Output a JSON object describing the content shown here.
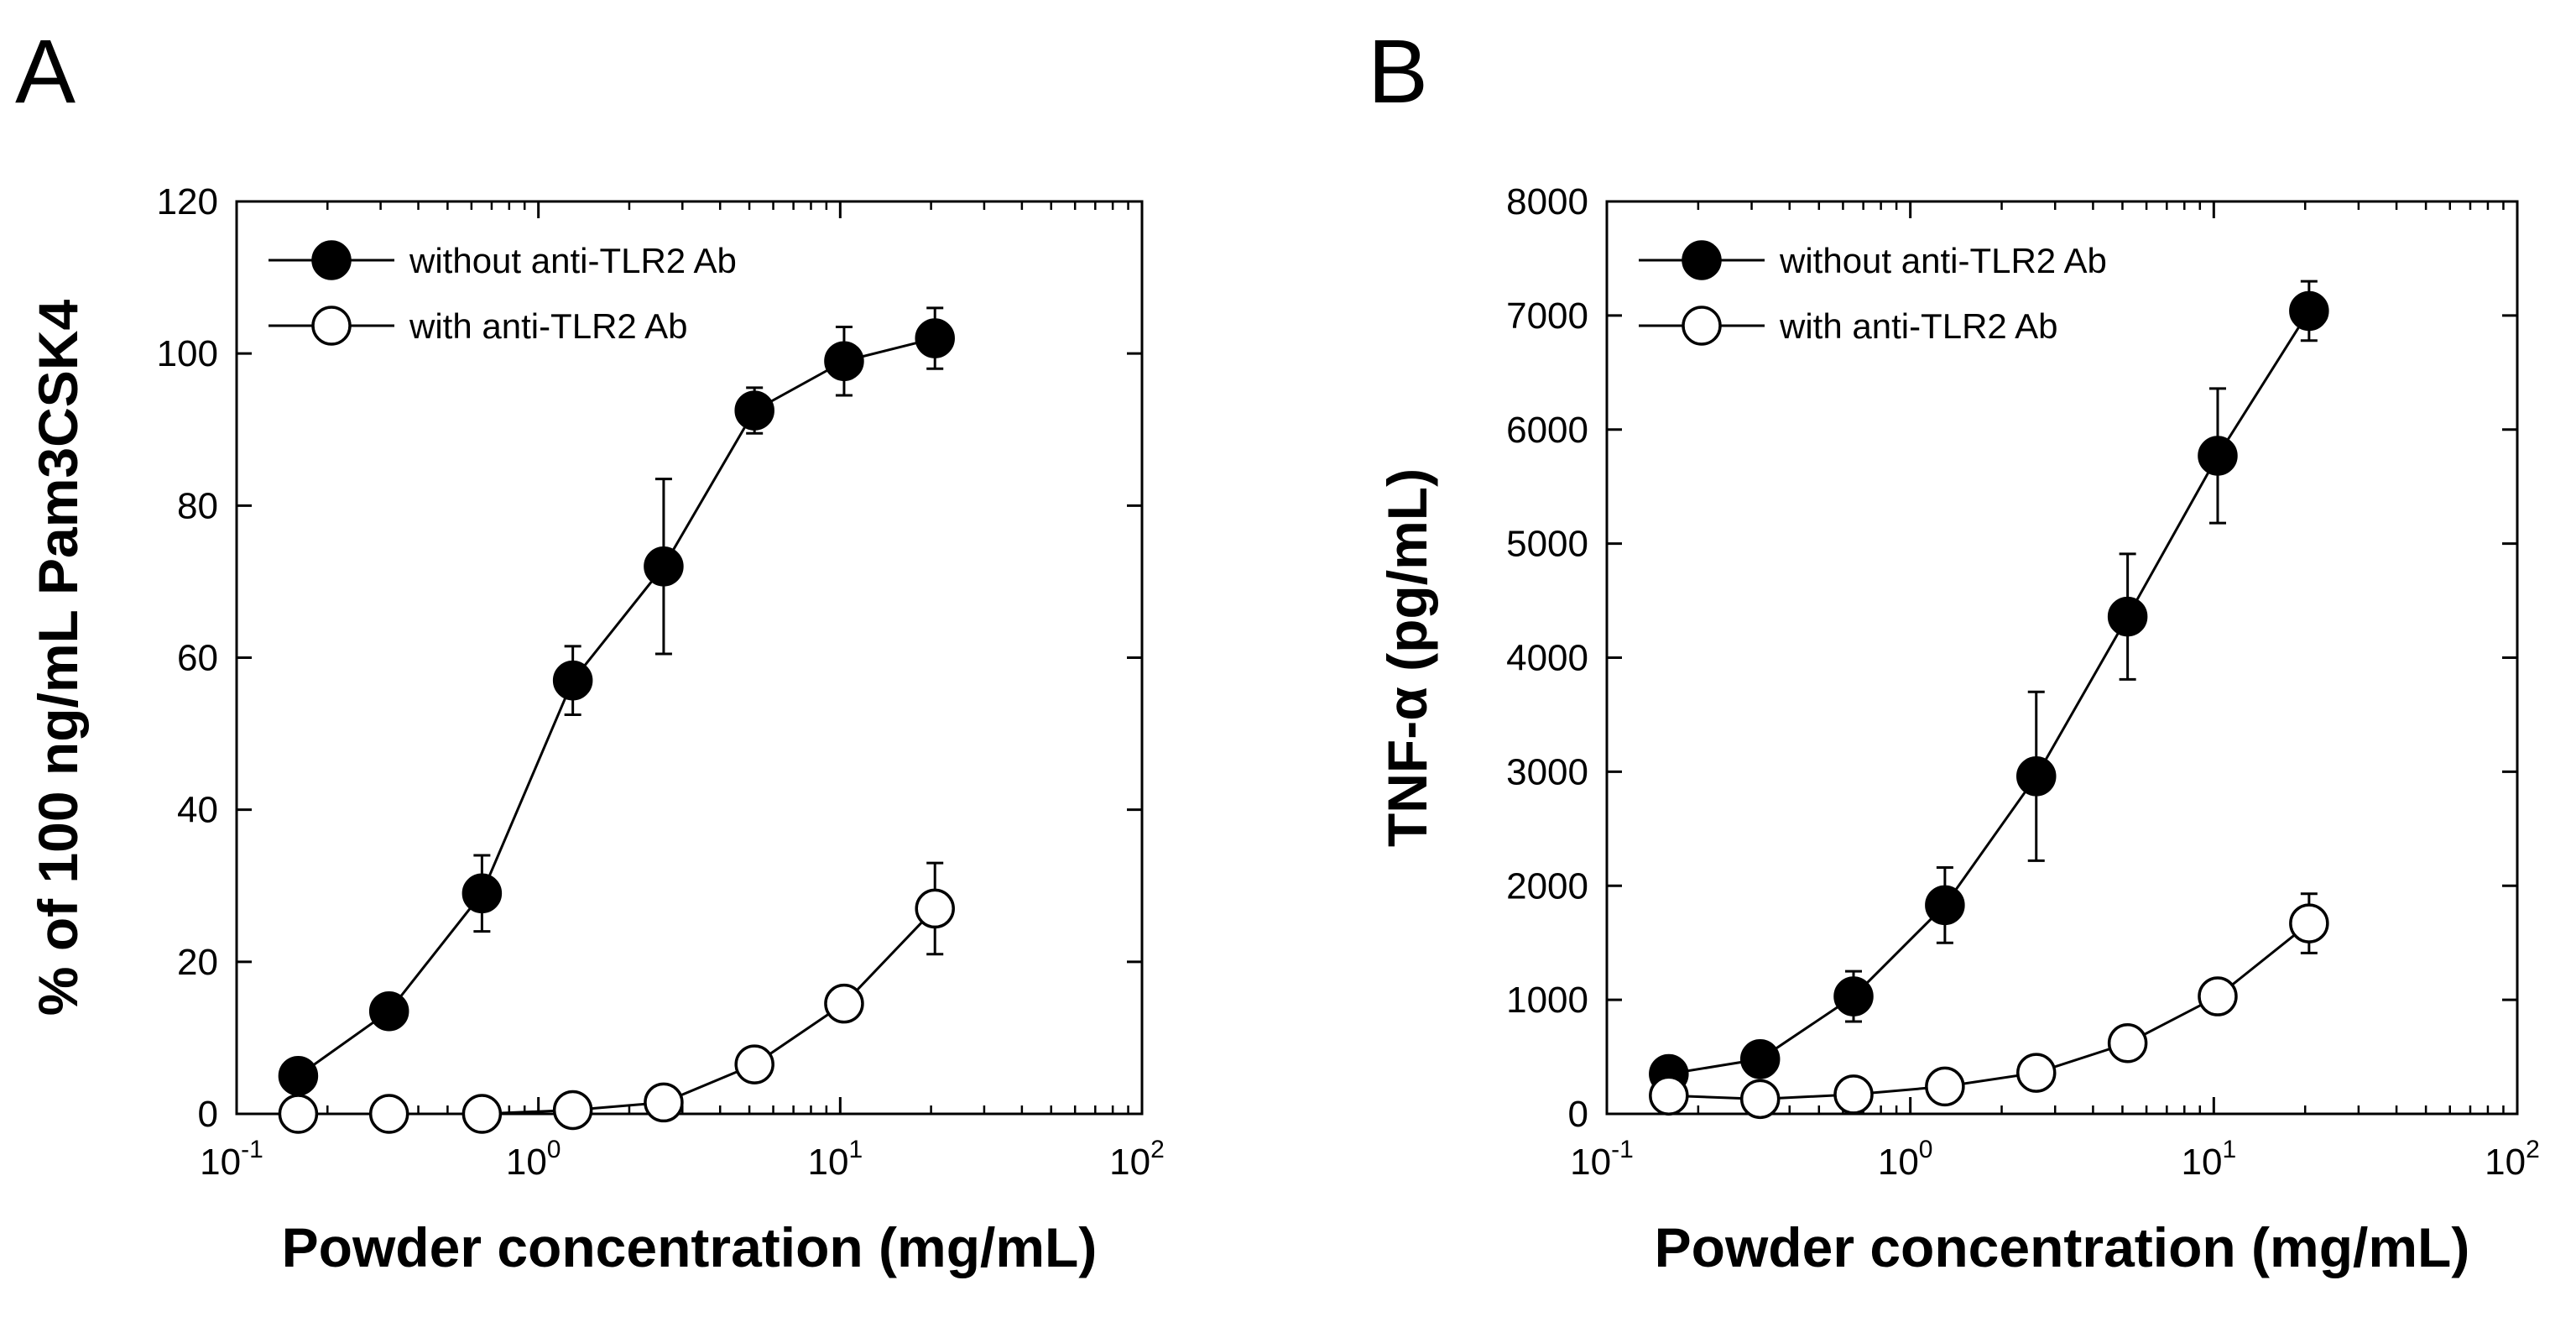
{
  "chart_data": [
    {
      "panel": "A",
      "type": "line",
      "xscale": "log",
      "xlim": [
        0.1,
        100
      ],
      "ylim": [
        0,
        120
      ],
      "yticks": [
        0,
        20,
        40,
        60,
        80,
        100,
        120
      ],
      "xticks": [
        {
          "value": 0.1,
          "base": "10",
          "exp": "-1"
        },
        {
          "value": 1,
          "base": "10",
          "exp": "0"
        },
        {
          "value": 10,
          "base": "10",
          "exp": "1"
        },
        {
          "value": 100,
          "base": "10",
          "exp": "2"
        }
      ],
      "xlabel": "Powder concentration (mg/mL)",
      "ylabel": "% of 100 ng/mL Pam3CSK4",
      "legend_position": "top-left",
      "x": [
        0.16,
        0.32,
        0.65,
        1.3,
        2.6,
        5.2,
        10.3,
        20.6
      ],
      "series": [
        {
          "name": "without anti-TLR2 Ab",
          "marker": "filled-circle",
          "values": [
            5,
            13.5,
            29,
            57,
            72,
            92.5,
            99,
            102
          ],
          "errors": [
            0,
            0,
            5,
            4.5,
            11.5,
            3,
            4.5,
            4
          ]
        },
        {
          "name": "with anti-TLR2 Ab",
          "marker": "open-circle",
          "values": [
            0,
            0,
            0,
            0.5,
            1.5,
            6.5,
            14.5,
            27
          ],
          "errors": [
            0,
            0,
            0,
            0,
            0,
            0,
            0,
            6
          ]
        }
      ]
    },
    {
      "panel": "B",
      "type": "line",
      "xscale": "log",
      "xlim": [
        0.1,
        100
      ],
      "ylim": [
        0,
        8000
      ],
      "yticks": [
        0,
        1000,
        2000,
        3000,
        4000,
        5000,
        6000,
        7000,
        8000
      ],
      "xticks": [
        {
          "value": 0.1,
          "base": "10",
          "exp": "-1"
        },
        {
          "value": 1,
          "base": "10",
          "exp": "0"
        },
        {
          "value": 10,
          "base": "10",
          "exp": "1"
        },
        {
          "value": 100,
          "base": "10",
          "exp": "2"
        }
      ],
      "xlabel": "Powder concentration (mg/mL)",
      "ylabel": "TNF-α (pg/mL)",
      "legend_position": "top-left",
      "x": [
        0.16,
        0.32,
        0.65,
        1.3,
        2.6,
        5.2,
        10.3,
        20.6
      ],
      "series": [
        {
          "name": "without anti-TLR2 Ab",
          "marker": "filled-circle",
          "values": [
            350,
            480,
            1030,
            1830,
            2960,
            4360,
            5770,
            7040
          ],
          "errors": [
            0,
            0,
            220,
            330,
            740,
            550,
            590,
            260
          ]
        },
        {
          "name": "with anti-TLR2 Ab",
          "marker": "open-circle",
          "values": [
            160,
            130,
            170,
            240,
            360,
            620,
            1030,
            1670
          ],
          "errors": [
            0,
            0,
            0,
            0,
            0,
            0,
            0,
            260
          ]
        }
      ]
    }
  ]
}
